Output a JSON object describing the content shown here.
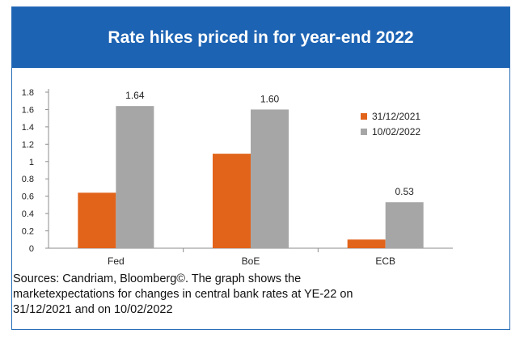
{
  "header": {
    "title": "Rate hikes priced in for year-end 2022"
  },
  "colors": {
    "header_bg": "#1d63b3",
    "series_1": "#e2641b",
    "series_2": "#a6a6a6"
  },
  "caption": {
    "line1": "Sources: Candriam, Bloomberg©. The graph shows the",
    "line2": "marketexpectations for changes in central bank rates at YE-22 on",
    "line3": "31/12/2021 and on 10/02/2022"
  },
  "chart_data": {
    "type": "bar",
    "title": "Rate hikes priced in for year-end 2022",
    "categories": [
      "Fed",
      "BoE",
      "ECB"
    ],
    "series": [
      {
        "name": "31/12/2021",
        "values": [
          0.64,
          1.09,
          0.1
        ],
        "color": "#e2641b"
      },
      {
        "name": "10/02/2022",
        "values": [
          1.64,
          1.6,
          0.53
        ],
        "color": "#a6a6a6"
      }
    ],
    "data_labels": {
      "series_index": 1,
      "labels": [
        "1.64",
        "1.60",
        "0.53"
      ]
    },
    "yticks": [
      "0",
      "0.2",
      "0.4",
      "0.6",
      "0.8",
      "1",
      "1.2",
      "1.4",
      "1.6",
      "1.8"
    ],
    "ylim": [
      0,
      1.8
    ],
    "legend_position": "right",
    "grid": false
  }
}
